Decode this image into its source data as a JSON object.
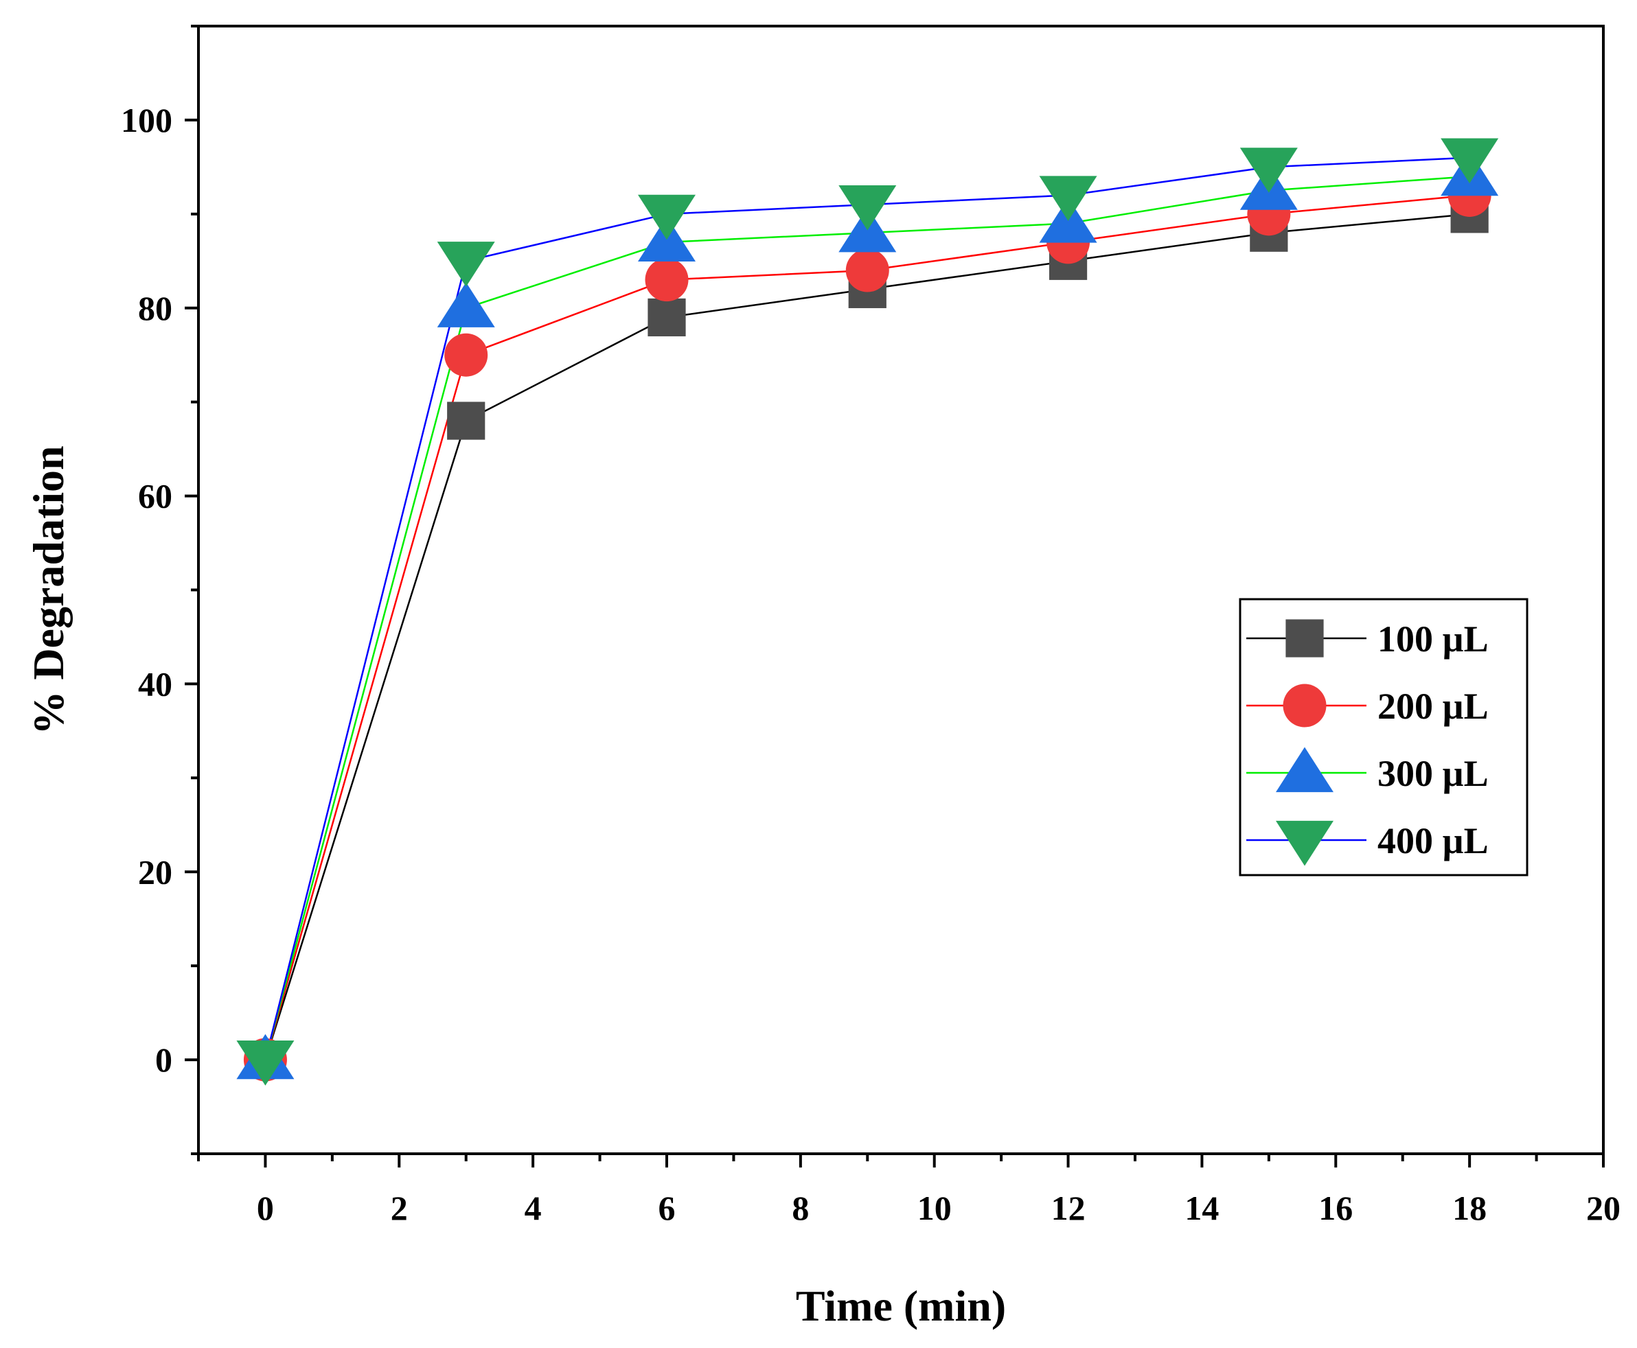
{
  "chart_data": {
    "type": "line",
    "xlabel": "Time (min)",
    "ylabel": "% Degradation",
    "xlim": [
      -1,
      20
    ],
    "ylim": [
      -10,
      110
    ],
    "xticks": [
      0,
      2,
      4,
      6,
      8,
      10,
      12,
      14,
      16,
      18,
      20
    ],
    "yticks": [
      0,
      20,
      40,
      60,
      80,
      100
    ],
    "x": [
      0,
      3,
      6,
      9,
      12,
      15,
      18
    ],
    "legend_position": "center-right",
    "series": [
      {
        "name": "100 µL",
        "values": [
          0,
          68,
          79,
          82,
          85,
          88,
          90
        ],
        "line_color": "#000000",
        "marker_color": "#4d4d4d",
        "marker": "square"
      },
      {
        "name": "200 µL",
        "values": [
          0,
          75,
          83,
          84,
          87,
          90,
          92
        ],
        "line_color": "#ff0000",
        "marker_color": "#ee3a3a",
        "marker": "circle"
      },
      {
        "name": "300 µL",
        "values": [
          0,
          80,
          87,
          88,
          89,
          92.5,
          94
        ],
        "line_color": "#00ee00",
        "marker_color": "#1f6fe0",
        "marker": "triangle-up"
      },
      {
        "name": "400 µL",
        "values": [
          0,
          85,
          90,
          91,
          92,
          95,
          96
        ],
        "line_color": "#0000ff",
        "marker_color": "#27a35a",
        "marker": "triangle-down"
      }
    ]
  }
}
